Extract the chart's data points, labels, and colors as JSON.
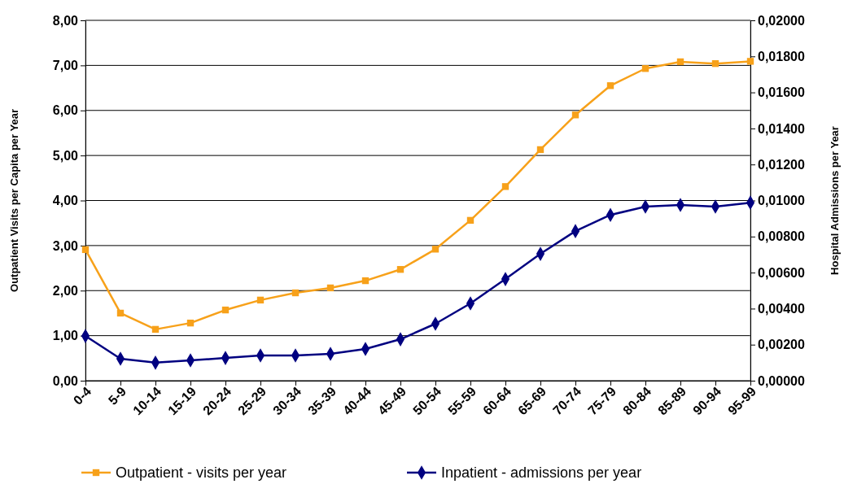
{
  "chart_data": {
    "type": "line",
    "ylabel": "Outpatient Visits per Capita per Year",
    "y2label": "Hospital Admissions per Year",
    "categories": [
      "0-4",
      "5-9",
      "10-14",
      "15-19",
      "20-24",
      "25-29",
      "30-34",
      "35-39",
      "40-44",
      "45-49",
      "50-54",
      "55-59",
      "60-64",
      "65-69",
      "70-74",
      "75-79",
      "80-84",
      "85-89",
      "90-94",
      "95-99"
    ],
    "series": [
      {
        "name": "Outpatient - visits per year",
        "color": "#f7a11a",
        "marker": "square",
        "values": [
          2.91,
          1.5,
          1.14,
          1.28,
          1.57,
          1.79,
          1.95,
          2.06,
          2.22,
          2.47,
          2.92,
          3.56,
          4.31,
          5.13,
          5.9,
          6.55,
          6.93,
          7.08,
          7.04,
          7.09
        ]
      },
      {
        "name": "Inpatient - admissions per year",
        "color": "#000080",
        "marker": "diamond",
        "axis": "y2",
        "values": [
          0.00248,
          0.00122,
          0.001,
          0.00113,
          0.00126,
          0.0014,
          0.0014,
          0.00149,
          0.00176,
          0.0023,
          0.00316,
          0.00429,
          0.00564,
          0.00704,
          0.0083,
          0.0092,
          0.00966,
          0.00975,
          0.00966,
          0.00988
        ]
      }
    ],
    "ylim": [
      0,
      8
    ],
    "yticks": [
      {
        "value": 0,
        "label": "0,00"
      },
      {
        "value": 1,
        "label": "1,00"
      },
      {
        "value": 2,
        "label": "2,00"
      },
      {
        "value": 3,
        "label": "3,00"
      },
      {
        "value": 4,
        "label": "4,00"
      },
      {
        "value": 5,
        "label": "5,00"
      },
      {
        "value": 6,
        "label": "6,00"
      },
      {
        "value": 7,
        "label": "7,00"
      },
      {
        "value": 8,
        "label": "8,00"
      }
    ],
    "y2lim": [
      0,
      0.02
    ],
    "y2ticks": [
      {
        "value": 0,
        "label": "0,00000"
      },
      {
        "value": 0.002,
        "label": "0,00200"
      },
      {
        "value": 0.004,
        "label": "0,00400"
      },
      {
        "value": 0.006,
        "label": "0,00600"
      },
      {
        "value": 0.008,
        "label": "0,00800"
      },
      {
        "value": 0.01,
        "label": "0,01000"
      },
      {
        "value": 0.012,
        "label": "0,01200"
      },
      {
        "value": 0.014,
        "label": "0,01400"
      },
      {
        "value": 0.016,
        "label": "0,01600"
      },
      {
        "value": 0.018,
        "label": "0,01800"
      },
      {
        "value": 0.02,
        "label": "0,02000"
      }
    ],
    "grid": "y",
    "legend": "bottom"
  }
}
